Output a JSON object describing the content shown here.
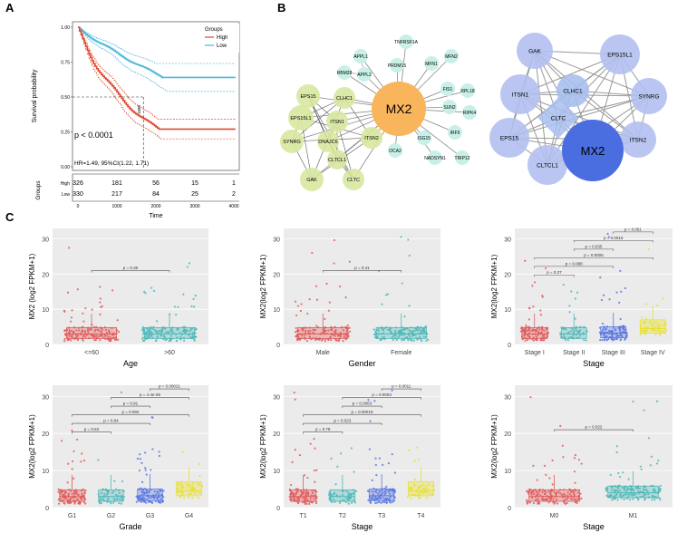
{
  "panels": {
    "a": "A",
    "b": "B",
    "c": "C"
  },
  "km": {
    "ylabel": "Survival probability",
    "xlabel": "Time",
    "yticks": [
      "1.00",
      "0.75",
      "0.50",
      "0.25",
      "0.00"
    ],
    "xticks": [
      "0",
      "1000",
      "2000",
      "3000",
      "4000"
    ],
    "legend_title": "Groups",
    "legend_items": [
      {
        "name": "High",
        "color": "#e0492f"
      },
      {
        "name": "Low",
        "color": "#4db8d8"
      }
    ],
    "pvalue": "p < 0.0001",
    "hr": "HR=1.49, 95%CI(1.22, 1.71)",
    "median_label": "1680",
    "risk_header": "Groups",
    "risk_rows": [
      {
        "name": "High",
        "values": [
          "326",
          "181",
          "56",
          "15",
          "1"
        ]
      },
      {
        "name": "Low",
        "values": [
          "330",
          "217",
          "84",
          "25",
          "2"
        ]
      }
    ]
  },
  "network_left": {
    "colors": {
      "hub": "#f9b55c",
      "cluster": "#d8e8a0",
      "leaf": "#c8f0e8",
      "edge": "#888888"
    },
    "hub": "MX2",
    "leaves": [
      "TNFRSF1A",
      "MFN2",
      "APPL1",
      "MFN1",
      "PRDM15",
      "FIS1",
      "APPL2",
      "RPL18",
      "SUN2",
      "RIPK4",
      "IRF5",
      "ISG15",
      "OCA2",
      "NADSYN1",
      "TRIP12",
      "RBM28"
    ],
    "cluster": [
      "CLHC1",
      "EPS15",
      "EPS15L1",
      "ITSN1",
      "SYNRG",
      "DNAJC6",
      "ITSN2",
      "CLTCL1",
      "GAK",
      "CLTC"
    ]
  },
  "network_right": {
    "colors": {
      "hub": "#4a6de0",
      "node": "#b3c0f0",
      "node2": "#a8bff0",
      "edge": "#999999"
    },
    "nodes": [
      "GAK",
      "EPS15L1",
      "ITSN1",
      "CLHC1",
      "SYNRG",
      "CLTC",
      "EPS15",
      "ITSN2",
      "CLTCL1",
      "MX2"
    ]
  },
  "boxplots": {
    "ylabel": "MX2 (log2 FPKM+1)",
    "ylabel_alt": "MX2(log2 FPKM+1)",
    "yticks": [
      "30",
      "20",
      "10",
      "0"
    ],
    "plots": [
      {
        "xlabel": "Age",
        "categories": [
          "<=60",
          ">60"
        ],
        "colors": [
          "#e05c5c",
          "#4fb8b8"
        ],
        "pvalues": [
          "p = 0.36"
        ]
      },
      {
        "xlabel": "Gender",
        "categories": [
          "Male",
          "Female"
        ],
        "colors": [
          "#e05c5c",
          "#4fb8b8"
        ],
        "pvalues": [
          "p = 0.41"
        ]
      },
      {
        "xlabel": "Stage",
        "categories": [
          "Stage I",
          "Stage II",
          "Stage III",
          "Stage IV"
        ],
        "colors": [
          "#e05c5c",
          "#4fb8b8",
          "#5c78e0",
          "#e8e030"
        ],
        "pvalues": [
          "p = 0.061",
          "p = 0.0016",
          "p = 0.035",
          "p = 0.0005",
          "p = 0.088",
          "p = 0.27"
        ]
      },
      {
        "xlabel": "Grade",
        "categories": [
          "G1",
          "G2",
          "G3",
          "G4"
        ],
        "colors": [
          "#e05c5c",
          "#4fb8b8",
          "#5c78e0",
          "#e8e030"
        ],
        "pvalues": [
          "p = 0.00021",
          "p = 4.4e-05",
          "p = 0.91",
          "p = 0.092",
          "p = 0.64",
          "p = 0.63"
        ]
      },
      {
        "xlabel": "Stage",
        "categories": [
          "T1",
          "T2",
          "T3",
          "T4"
        ],
        "colors": [
          "#e05c5c",
          "#4fb8b8",
          "#5c78e0",
          "#e8e030"
        ],
        "pvalues": [
          "p = 0.0011",
          "p = 0.0003",
          "p = 0.0063",
          "p = 0.00019",
          "p = 0.023",
          "p = 0.78"
        ]
      },
      {
        "xlabel": "Stage",
        "categories": [
          "M0",
          "M1"
        ],
        "colors": [
          "#e05c5c",
          "#4fb8b8"
        ],
        "pvalues": [
          "p = 0.022"
        ]
      }
    ]
  }
}
